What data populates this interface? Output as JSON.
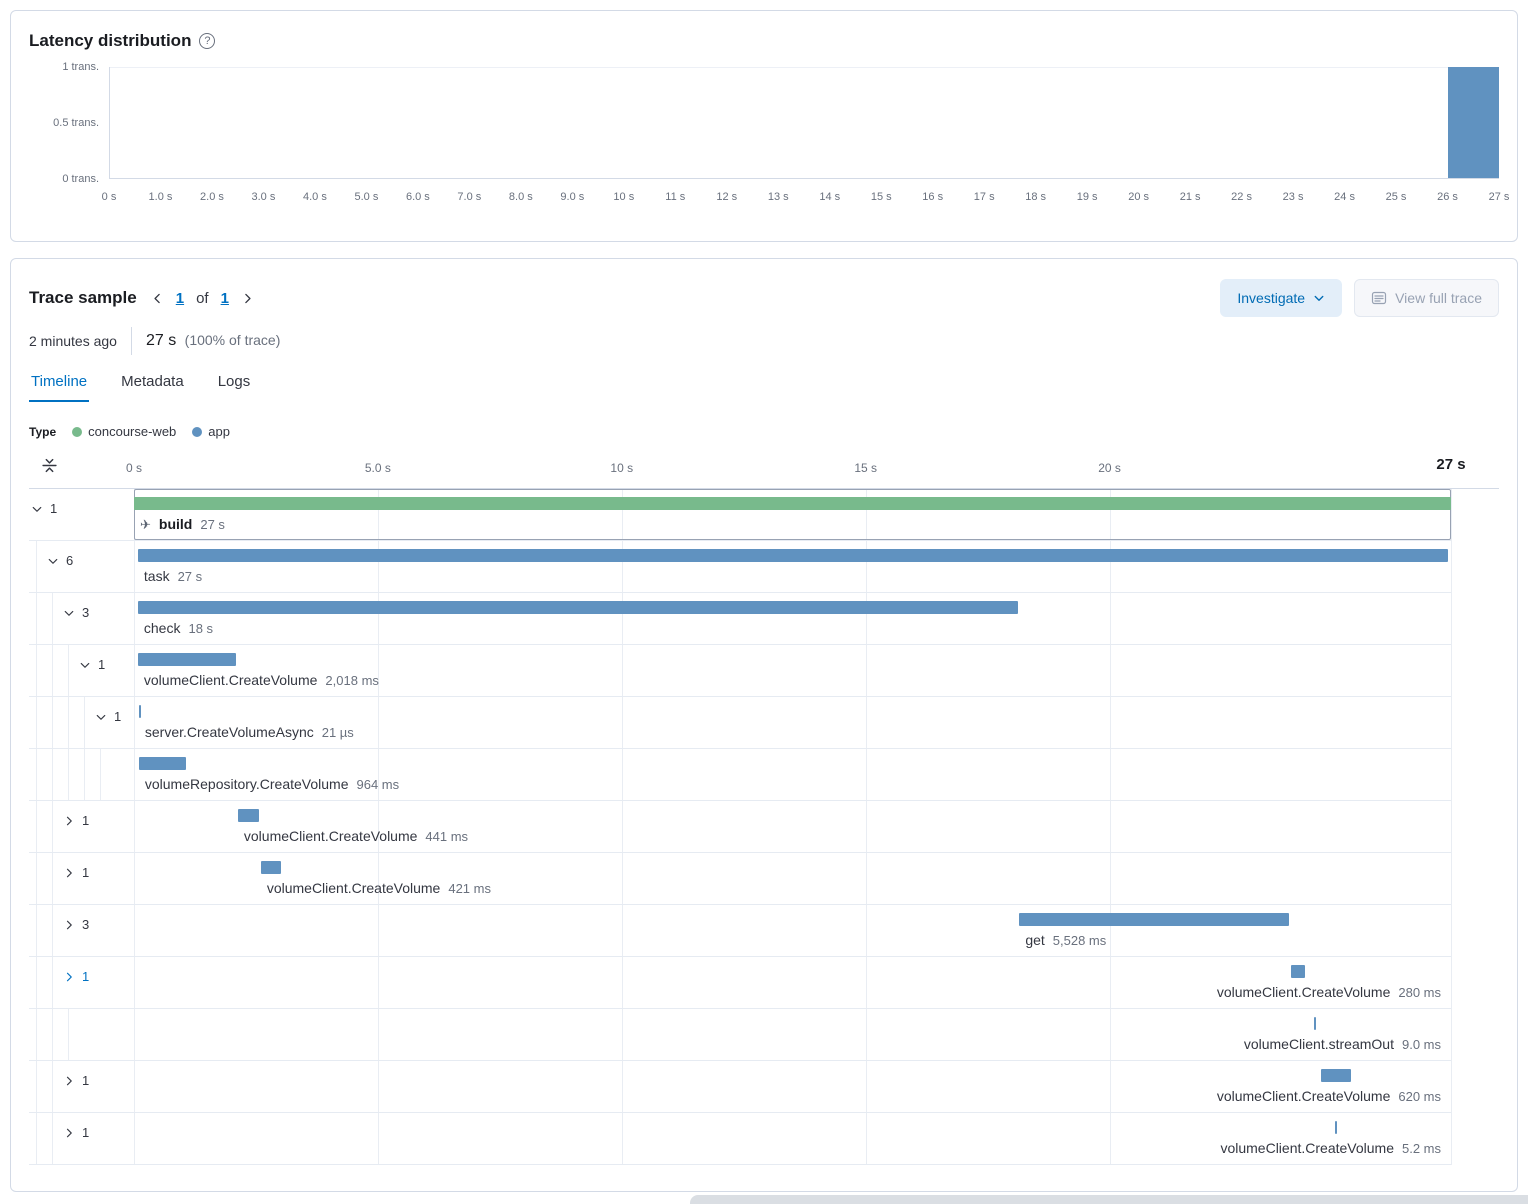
{
  "colors": {
    "bar_blue": "#6092C0",
    "bar_green": "#78BA8C",
    "link_blue": "#0071C2",
    "text_dark": "#1A1C21",
    "text_muted": "#69707D",
    "border": "#D3DAE6"
  },
  "latency": {
    "title": "Latency distribution"
  },
  "trace": {
    "title": "Trace sample",
    "pager": {
      "page": "1",
      "of_label": "of",
      "total": "1"
    },
    "buttons": {
      "investigate": "Investigate",
      "view_full_trace": "View full trace"
    },
    "timestamp": "2 minutes ago",
    "duration": "27 s",
    "duration_note": "(100% of trace)",
    "tabs": [
      {
        "label": "Timeline",
        "active": true
      },
      {
        "label": "Metadata",
        "active": false
      },
      {
        "label": "Logs",
        "active": false
      }
    ],
    "legend": {
      "label": "Type",
      "items": [
        {
          "label": "concourse-web",
          "color": "#78BA8C"
        },
        {
          "label": "app",
          "color": "#6092C0"
        }
      ]
    }
  },
  "chart_data": [
    {
      "type": "bar",
      "title": "Latency distribution",
      "xlabel": "",
      "ylabel": "transactions",
      "y_tick_labels": [
        "1 trans.",
        "0.5 trans.",
        "0 trans."
      ],
      "x_tick_labels": [
        "0 s",
        "1.0 s",
        "2.0 s",
        "3.0 s",
        "4.0 s",
        "5.0 s",
        "6.0 s",
        "7.0 s",
        "8.0 s",
        "9.0 s",
        "10 s",
        "11 s",
        "12 s",
        "13 s",
        "14 s",
        "15 s",
        "16 s",
        "17 s",
        "18 s",
        "19 s",
        "20 s",
        "21 s",
        "22 s",
        "23 s",
        "24 s",
        "25 s",
        "26 s",
        "27 s"
      ],
      "bucket_width_s": 1,
      "x_bucket_starts_s": [
        0,
        1,
        2,
        3,
        4,
        5,
        6,
        7,
        8,
        9,
        10,
        11,
        12,
        13,
        14,
        15,
        16,
        17,
        18,
        19,
        20,
        21,
        22,
        23,
        24,
        25,
        26
      ],
      "values": [
        0,
        0,
        0,
        0,
        0,
        0,
        0,
        0,
        0,
        0,
        0,
        0,
        0,
        0,
        0,
        0,
        0,
        0,
        0,
        0,
        0,
        0,
        0,
        0,
        0,
        0,
        1
      ],
      "xlim": [
        0,
        27
      ],
      "ylim": [
        0,
        1
      ],
      "bar_color": "#6092C0",
      "grid": "minimal",
      "legend_position": "none"
    },
    {
      "type": "gantt",
      "title": "Trace sample timeline waterfall",
      "total_s": 27,
      "x_ticks": [
        {
          "s": 0,
          "label": "0 s"
        },
        {
          "s": 5,
          "label": "5.0 s"
        },
        {
          "s": 10,
          "label": "10 s"
        },
        {
          "s": 15,
          "label": "15 s"
        },
        {
          "s": 20,
          "label": "20 s"
        },
        {
          "s": 27,
          "label": "27 s",
          "emphasis": true
        }
      ],
      "services": {
        "concourse-web": "#78BA8C",
        "app": "#6092C0"
      },
      "spans": [
        {
          "name": "build",
          "duration_label": "27 s",
          "count": "1",
          "level": 0,
          "toggle": "expanded",
          "service": "concourse-web",
          "start_s": 0,
          "duration_s": 27,
          "bold": true,
          "icon": "plane",
          "selected": true,
          "label_align": "left"
        },
        {
          "name": "task",
          "duration_label": "27 s",
          "count": "6",
          "level": 1,
          "toggle": "expanded",
          "service": "app",
          "start_s": 0.08,
          "duration_s": 26.85,
          "label_align": "left"
        },
        {
          "name": "check",
          "duration_label": "18 s",
          "count": "3",
          "level": 2,
          "toggle": "expanded",
          "service": "app",
          "start_s": 0.08,
          "duration_s": 18.05,
          "label_align": "left"
        },
        {
          "name": "volumeClient.CreateVolume",
          "duration_label": "2,018 ms",
          "count": "1",
          "level": 3,
          "toggle": "expanded",
          "service": "app",
          "start_s": 0.08,
          "duration_s": 2.018,
          "label_align": "left"
        },
        {
          "name": "server.CreateVolumeAsync",
          "duration_label": "21 µs",
          "count": "1",
          "level": 4,
          "toggle": "expanded",
          "service": "app",
          "start_s": 0.1,
          "duration_s": 0.021,
          "label_align": "left"
        },
        {
          "name": "volumeRepository.CreateVolume",
          "duration_label": "964 ms",
          "count": null,
          "level": 5,
          "toggle": null,
          "service": "app",
          "start_s": 0.1,
          "duration_s": 0.964,
          "label_align": "left"
        },
        {
          "name": "volumeClient.CreateVolume",
          "duration_label": "441 ms",
          "count": "1",
          "level": 2,
          "toggle": "collapsed",
          "service": "app",
          "start_s": 2.13,
          "duration_s": 0.441,
          "label_align": "left"
        },
        {
          "name": "volumeClient.CreateVolume",
          "duration_label": "421 ms",
          "count": "1",
          "level": 2,
          "toggle": "collapsed",
          "service": "app",
          "start_s": 2.6,
          "duration_s": 0.421,
          "label_align": "left"
        },
        {
          "name": "get",
          "duration_label": "5,528 ms",
          "count": "3",
          "level": 2,
          "toggle": "collapsed",
          "service": "app",
          "start_s": 18.15,
          "duration_s": 5.528,
          "label_align": "left"
        },
        {
          "name": "volumeClient.CreateVolume",
          "duration_label": "280 ms",
          "count": "1",
          "level": 2,
          "toggle": "collapsed",
          "service": "app",
          "start_s": 23.72,
          "duration_s": 0.28,
          "label_align": "right",
          "toggle_highlight": true
        },
        {
          "name": "volumeClient.streamOut",
          "duration_label": "9.0 ms",
          "count": null,
          "level": 3,
          "toggle": null,
          "service": "app",
          "start_s": 24.2,
          "duration_s": 0.009,
          "label_align": "right"
        },
        {
          "name": "volumeClient.CreateVolume",
          "duration_label": "620 ms",
          "count": "1",
          "level": 2,
          "toggle": "collapsed",
          "service": "app",
          "start_s": 24.33,
          "duration_s": 0.62,
          "label_align": "right"
        },
        {
          "name": "volumeClient.CreateVolume",
          "duration_label": "5.2 ms",
          "count": "1",
          "level": 2,
          "toggle": "collapsed",
          "service": "app",
          "start_s": 24.62,
          "duration_s": 0.0052,
          "label_align": "right"
        }
      ]
    }
  ]
}
